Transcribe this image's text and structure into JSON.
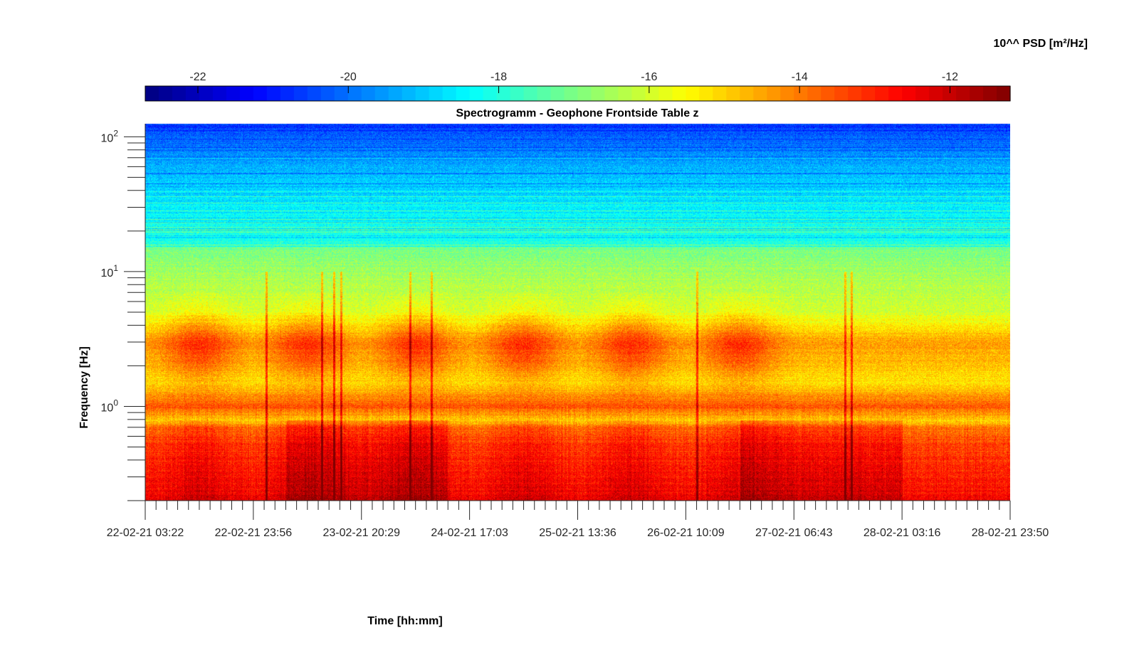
{
  "chart_data": {
    "type": "heatmap",
    "title": "Spectrogramm - Geophone Frontside Table z",
    "xlabel": "Time [hh:mm]",
    "ylabel": "Frequency [Hz]",
    "colorbar_label": "10^^ PSD [m²/Hz]",
    "y_scale": "log",
    "ylim": [
      0.2,
      125
    ],
    "y_ticks": [
      {
        "value": 1,
        "base": "10",
        "exp": "0"
      },
      {
        "value": 10,
        "base": "10",
        "exp": "1"
      },
      {
        "value": 100,
        "base": "10",
        "exp": "2"
      }
    ],
    "x_ticks": [
      "22-02-21 03:22",
      "22-02-21 23:56",
      "23-02-21 20:29",
      "24-02-21 17:03",
      "25-02-21 13:36",
      "26-02-21 10:09",
      "27-02-21 06:43",
      "28-02-21 03:16",
      "28-02-21 23:50"
    ],
    "x_minor_per_major": 10,
    "colorbar": {
      "range": [
        -22.7,
        -11.2
      ],
      "ticks": [
        -22,
        -20,
        -18,
        -16,
        -14,
        -12
      ],
      "tick_labels": [
        "-22",
        "-20",
        "-18",
        "-16",
        "-14",
        "-12"
      ],
      "colormap": "jet",
      "placement": "top"
    },
    "psd_profile": [
      {
        "freq": 0.2,
        "level": -12.3
      },
      {
        "freq": 0.3,
        "level": -12.6
      },
      {
        "freq": 0.5,
        "level": -13.0
      },
      {
        "freq": 0.7,
        "level": -13.6
      },
      {
        "freq": 0.8,
        "level": -14.9
      },
      {
        "freq": 1.0,
        "level": -13.6
      },
      {
        "freq": 1.5,
        "level": -15.2
      },
      {
        "freq": 3.0,
        "level": -14.4
      },
      {
        "freq": 5.0,
        "level": -16.0
      },
      {
        "freq": 10.0,
        "level": -16.6
      },
      {
        "freq": 15.0,
        "level": -17.0
      },
      {
        "freq": 16.0,
        "level": -18.0
      },
      {
        "freq": 30.0,
        "level": -18.5
      },
      {
        "freq": 60.0,
        "level": -19.3
      },
      {
        "freq": 125.0,
        "level": -20.6
      }
    ],
    "daily_activity_centers": [
      0.5,
      1.5,
      2.5,
      3.5,
      4.5,
      5.5
    ],
    "colors": {
      "axis": "#262626",
      "frame": "#000000",
      "background": "#ffffff"
    }
  }
}
